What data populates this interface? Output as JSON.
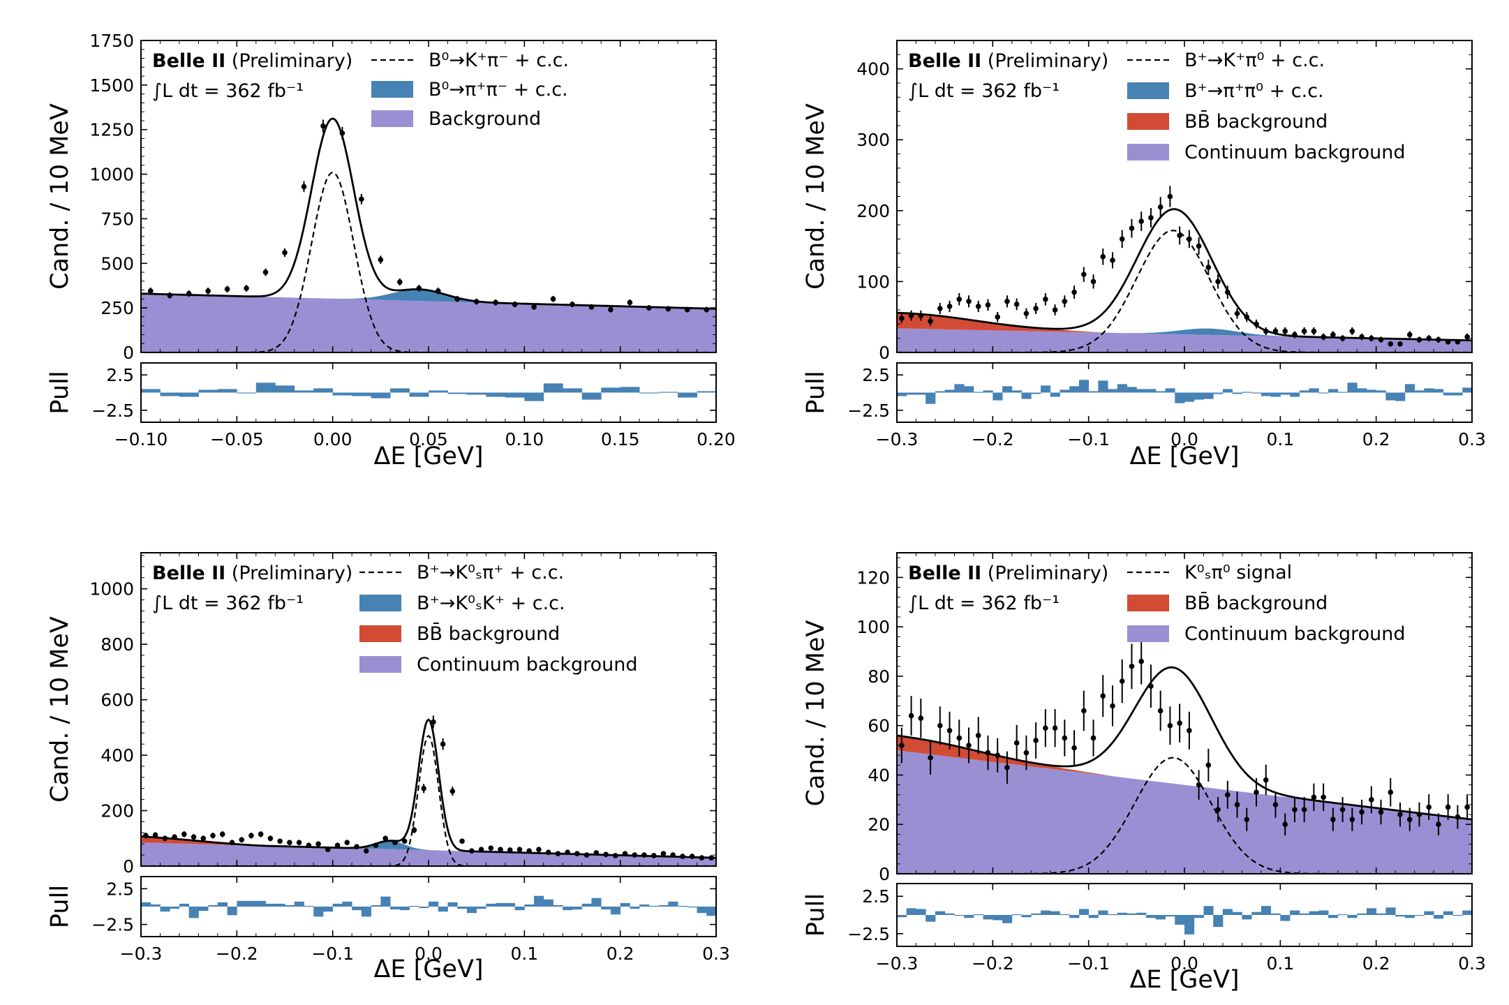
{
  "figure": {
    "experiment_bold": "Belle II",
    "experiment_note": "(Preliminary)",
    "luminosity": "∫L dt = 362 fb⁻¹",
    "pull_label": "Pull",
    "pull_ticks": [
      "2.5",
      "−2.5"
    ],
    "colors": {
      "signal": "#4682b4",
      "bbbar": "#d24b35",
      "continuum": "#9b8fd4",
      "fit": "#000000"
    }
  },
  "chart_data": [
    {
      "id": "kpi",
      "type": "area",
      "title": "",
      "xlabel": "ΔE [GeV]",
      "ylabel": "Cand. / 10 MeV",
      "xlim": [
        -0.1,
        0.2
      ],
      "ylim": [
        0,
        1750
      ],
      "xticks": [
        -0.1,
        -0.05,
        0.0,
        0.05,
        0.1,
        0.15,
        0.2
      ],
      "xtick_labels": [
        "−0.10",
        "−0.05",
        "0.00",
        "0.05",
        "0.10",
        "0.15",
        "0.20"
      ],
      "yticks": [
        0,
        250,
        500,
        750,
        1000,
        1250,
        1500,
        1750
      ],
      "ytick_labels": [
        "0",
        "250",
        "500",
        "750",
        "1000",
        "1250",
        "1500",
        "1750"
      ],
      "legend": [
        {
          "kind": "dashed",
          "label": "B⁰→K⁺π⁻ + c.c."
        },
        {
          "kind": "signal",
          "label": "B⁰→π⁺π⁻ + c.c."
        },
        {
          "kind": "continuum",
          "label": "Background"
        }
      ],
      "model": {
        "bkg0": 330,
        "bkg1": 245,
        "bb0": 0,
        "bb_end": -0.1,
        "sig_mu": 0.0,
        "sig_amp": 1010,
        "sig_sigma": 0.011,
        "feed_mu": 0.045,
        "feed_amp": 65,
        "feed_sigma": 0.014
      },
      "data_points": {
        "x": [
          -0.095,
          -0.085,
          -0.075,
          -0.065,
          -0.055,
          -0.045,
          -0.035,
          -0.025,
          -0.015,
          -0.005,
          0.005,
          0.015,
          0.025,
          0.035,
          0.045,
          0.055,
          0.065,
          0.075,
          0.085,
          0.095,
          0.105,
          0.115,
          0.125,
          0.135,
          0.145,
          0.155,
          0.165,
          0.175,
          0.185,
          0.195
        ],
        "y": [
          345,
          320,
          330,
          345,
          355,
          360,
          450,
          560,
          930,
          1270,
          1230,
          860,
          520,
          395,
          360,
          345,
          300,
          285,
          280,
          270,
          255,
          300,
          270,
          255,
          240,
          280,
          250,
          245,
          240,
          240
        ]
      },
      "pulls": [
        0.5,
        -0.5,
        -0.6,
        0.4,
        0.5,
        -0.1,
        1.4,
        1.0,
        0.3,
        0.6,
        -0.4,
        -0.5,
        -0.8,
        0.6,
        -0.6,
        0.3,
        -0.2,
        -0.3,
        -0.6,
        -0.7,
        -1.2,
        1.3,
        0.6,
        -1.0,
        0.7,
        0.8,
        -0.1,
        0.1,
        -0.7,
        0.2
      ]
    },
    {
      "id": "kpi0",
      "type": "area",
      "title": "",
      "xlabel": "ΔE [GeV]",
      "ylabel": "Cand. / 10 MeV",
      "xlim": [
        -0.3,
        0.3
      ],
      "ylim": [
        0,
        440
      ],
      "xticks": [
        -0.3,
        -0.2,
        -0.1,
        0.0,
        0.1,
        0.2,
        0.3
      ],
      "xtick_labels": [
        "−0.3",
        "−0.2",
        "−0.1",
        "0.0",
        "0.1",
        "0.2",
        "0.3"
      ],
      "yticks": [
        0,
        100,
        200,
        300,
        400
      ],
      "ytick_labels": [
        "0",
        "100",
        "200",
        "300",
        "400"
      ],
      "legend": [
        {
          "kind": "dashed",
          "label": "B⁺→K⁺π⁰ + c.c."
        },
        {
          "kind": "signal",
          "label": "B⁺→π⁺π⁰ + c.c."
        },
        {
          "kind": "bbbar",
          "label": "BB̄ background"
        },
        {
          "kind": "continuum",
          "label": "Continuum background"
        }
      ],
      "model": {
        "bkg0": 34,
        "bkg1": 17,
        "bb0": 22,
        "bb_end": -0.08,
        "sig_mu": -0.012,
        "sig_amp": 172,
        "sig_sigma": 0.038,
        "feed_mu": 0.025,
        "feed_amp": 9,
        "feed_sigma": 0.03
      },
      "data_points": {
        "x": [
          -0.295,
          -0.285,
          -0.275,
          -0.265,
          -0.255,
          -0.245,
          -0.235,
          -0.225,
          -0.215,
          -0.205,
          -0.195,
          -0.185,
          -0.175,
          -0.165,
          -0.155,
          -0.145,
          -0.135,
          -0.125,
          -0.115,
          -0.105,
          -0.095,
          -0.085,
          -0.075,
          -0.065,
          -0.055,
          -0.045,
          -0.035,
          -0.025,
          -0.015,
          -0.005,
          0.005,
          0.015,
          0.025,
          0.035,
          0.045,
          0.055,
          0.065,
          0.075,
          0.085,
          0.095,
          0.105,
          0.115,
          0.125,
          0.135,
          0.145,
          0.155,
          0.165,
          0.175,
          0.185,
          0.195,
          0.205,
          0.215,
          0.225,
          0.235,
          0.245,
          0.255,
          0.265,
          0.275,
          0.285,
          0.295
        ],
        "y": [
          48,
          52,
          52,
          44,
          62,
          65,
          75,
          72,
          65,
          67,
          50,
          72,
          68,
          55,
          62,
          75,
          60,
          72,
          85,
          110,
          100,
          135,
          130,
          160,
          175,
          185,
          190,
          205,
          220,
          165,
          160,
          150,
          120,
          100,
          85,
          55,
          50,
          40,
          30,
          30,
          30,
          25,
          30,
          30,
          22,
          25,
          20,
          30,
          22,
          20,
          18,
          12,
          12,
          25,
          18,
          20,
          18,
          15,
          15,
          22
        ]
      },
      "pulls": [
        -0.5,
        -0.3,
        -0.3,
        -1.6,
        0.2,
        0.4,
        1.2,
        0.9,
        0.1,
        0.3,
        -1.1,
        0.9,
        0.3,
        -0.9,
        -0.2,
        1.0,
        -0.6,
        0.4,
        0.9,
        1.8,
        0.2,
        1.7,
        0.5,
        1.2,
        0.8,
        0.5,
        0.5,
        0.2,
        0.6,
        -1.5,
        -1.3,
        -1.0,
        -0.9,
        -0.2,
        0.5,
        -0.2,
        0.1,
        -0.1,
        -0.5,
        -0.6,
        -0.3,
        -0.6,
        0.3,
        0.6,
        -0.1,
        0.5,
        0.1,
        1.4,
        0.6,
        0.4,
        0.3,
        -1.1,
        -1.2,
        1.2,
        0.3,
        0.6,
        0.5,
        -0.4,
        -0.4,
        0.7
      ]
    },
    {
      "id": "kspi",
      "type": "area",
      "title": "",
      "xlabel": "ΔE [GeV]",
      "ylabel": "Cand. / 10 MeV",
      "xlim": [
        -0.3,
        0.3
      ],
      "ylim": [
        0,
        1130
      ],
      "xticks": [
        -0.3,
        -0.2,
        -0.1,
        0.0,
        0.1,
        0.2,
        0.3
      ],
      "xtick_labels": [
        "−0.3",
        "−0.2",
        "−0.1",
        "0.0",
        "0.1",
        "0.2",
        "0.3"
      ],
      "yticks": [
        0,
        200,
        400,
        600,
        800,
        1000
      ],
      "ytick_labels": [
        "0",
        "200",
        "400",
        "600",
        "800",
        "1000"
      ],
      "legend": [
        {
          "kind": "dashed",
          "label": "B⁺→K⁰ₛπ⁺ + c.c."
        },
        {
          "kind": "signal",
          "label": "B⁺→K⁰ₛK⁺ + c.c."
        },
        {
          "kind": "bbbar",
          "label": "BB̄ background"
        },
        {
          "kind": "continuum",
          "label": "Continuum background"
        }
      ],
      "model": {
        "bkg0": 85,
        "bkg1": 30,
        "bb0": 22,
        "bb_end": -0.17,
        "sig_mu": 0.0,
        "sig_amp": 470,
        "sig_sigma": 0.0105,
        "feed_mu": -0.04,
        "feed_amp": 30,
        "feed_sigma": 0.015
      },
      "data_points": {
        "x": [
          -0.295,
          -0.285,
          -0.275,
          -0.265,
          -0.255,
          -0.245,
          -0.235,
          -0.225,
          -0.215,
          -0.205,
          -0.195,
          -0.185,
          -0.175,
          -0.165,
          -0.155,
          -0.145,
          -0.135,
          -0.125,
          -0.115,
          -0.105,
          -0.095,
          -0.085,
          -0.075,
          -0.065,
          -0.055,
          -0.045,
          -0.035,
          -0.025,
          -0.015,
          -0.005,
          0.005,
          0.015,
          0.025,
          0.035,
          0.045,
          0.055,
          0.065,
          0.075,
          0.085,
          0.095,
          0.105,
          0.115,
          0.125,
          0.135,
          0.145,
          0.155,
          0.165,
          0.175,
          0.185,
          0.195,
          0.205,
          0.215,
          0.225,
          0.235,
          0.245,
          0.255,
          0.265,
          0.275,
          0.285,
          0.295
        ],
        "y": [
          110,
          112,
          100,
          105,
          115,
          105,
          100,
          110,
          115,
          85,
          95,
          110,
          115,
          100,
          90,
          85,
          85,
          75,
          80,
          60,
          75,
          85,
          70,
          55,
          75,
          100,
          85,
          90,
          130,
          280,
          520,
          440,
          270,
          90,
          55,
          60,
          65,
          60,
          58,
          60,
          55,
          60,
          50,
          45,
          50,
          45,
          40,
          48,
          42,
          38,
          45,
          40,
          40,
          38,
          45,
          40,
          35,
          35,
          30,
          30
        ]
      },
      "pulls": [
        0.6,
        0.3,
        -0.7,
        -0.3,
        0.4,
        -1.6,
        -0.6,
        0.2,
        0.6,
        -1.2,
        0.8,
        0.8,
        0.8,
        0.4,
        0.4,
        0.2,
        0.7,
        0.1,
        -1.4,
        -0.7,
        0.4,
        0.7,
        -0.5,
        -1.4,
        0.2,
        1.4,
        -0.4,
        -0.5,
        0.1,
        -0.2,
        0.7,
        -0.7,
        0.6,
        -0.3,
        -0.9,
        -0.3,
        0.4,
        0.5,
        0.5,
        -0.5,
        0.3,
        1.5,
        1.0,
        0.2,
        -0.5,
        -0.4,
        0.4,
        1.2,
        -0.4,
        -1.1,
        0.5,
        -0.3,
        0.3,
        0.1,
        0.2,
        0.7,
        0.1,
        -0.1,
        -0.9,
        -1.3
      ]
    },
    {
      "id": "kspi0",
      "type": "area",
      "title": "",
      "xlabel": "ΔE [GeV]",
      "ylabel": "Cand. / 10 MeV",
      "xlim": [
        -0.3,
        0.3
      ],
      "ylim": [
        0,
        130
      ],
      "xticks": [
        -0.3,
        -0.2,
        -0.1,
        0.0,
        0.1,
        0.2,
        0.3
      ],
      "xtick_labels": [
        "−0.3",
        "−0.2",
        "−0.1",
        "0.0",
        "0.1",
        "0.2",
        "0.3"
      ],
      "yticks": [
        0,
        20,
        40,
        60,
        80,
        100,
        120
      ],
      "ytick_labels": [
        "0",
        "20",
        "40",
        "60",
        "80",
        "100",
        "120"
      ],
      "legend": [
        {
          "kind": "dashed",
          "label": "K⁰ₛπ⁰ signal"
        },
        {
          "kind": "bbbar",
          "label": "BB̄ background"
        },
        {
          "kind": "continuum",
          "label": "Continuum background"
        }
      ],
      "model": {
        "bkg0": 50,
        "bkg1": 22,
        "bb0": 6,
        "bb_end": -0.07,
        "sig_mu": -0.012,
        "sig_amp": 47,
        "sig_sigma": 0.04,
        "feed_mu": 0,
        "feed_amp": 0,
        "feed_sigma": 0.02
      },
      "data_points": {
        "x": [
          -0.295,
          -0.285,
          -0.275,
          -0.265,
          -0.255,
          -0.245,
          -0.235,
          -0.225,
          -0.215,
          -0.205,
          -0.195,
          -0.185,
          -0.175,
          -0.165,
          -0.155,
          -0.145,
          -0.135,
          -0.125,
          -0.115,
          -0.105,
          -0.095,
          -0.085,
          -0.075,
          -0.065,
          -0.055,
          -0.045,
          -0.035,
          -0.025,
          -0.015,
          -0.005,
          0.005,
          0.015,
          0.025,
          0.035,
          0.045,
          0.055,
          0.065,
          0.075,
          0.085,
          0.095,
          0.105,
          0.115,
          0.125,
          0.135,
          0.145,
          0.155,
          0.165,
          0.175,
          0.185,
          0.195,
          0.205,
          0.215,
          0.225,
          0.235,
          0.245,
          0.255,
          0.265,
          0.275,
          0.285,
          0.295
        ],
        "y": [
          52,
          64,
          63,
          47,
          60,
          58,
          55,
          52,
          56,
          49,
          48,
          43,
          53,
          49,
          54,
          59,
          59,
          55,
          51,
          66,
          55,
          72,
          68,
          78,
          84,
          86,
          76,
          66,
          60,
          61,
          58,
          36,
          44,
          26,
          32,
          28,
          22,
          33,
          38,
          28,
          20,
          26,
          26,
          31,
          31,
          22,
          26,
          22,
          25,
          30,
          25,
          33,
          24,
          22,
          24,
          27,
          20,
          27,
          23,
          27
        ]
      },
      "pulls": [
        -0.3,
        0.9,
        0.8,
        -0.9,
        0.5,
        0.2,
        -0.1,
        -0.4,
        0.1,
        -0.6,
        -0.7,
        -1.1,
        0.1,
        -0.3,
        0.2,
        0.6,
        0.5,
        0.1,
        -0.4,
        0.8,
        -0.4,
        0.6,
        0.1,
        0.3,
        0.2,
        0.3,
        -0.4,
        -0.6,
        -0.2,
        -1.3,
        -2.6,
        -0.4,
        1.2,
        -1.6,
        0.8,
        0.4,
        -0.6,
        0.4,
        1.2,
        0.2,
        -0.8,
        0.6,
        0.2,
        0.5,
        0.6,
        -0.4,
        0.1,
        -0.4,
        0.2,
        0.9,
        0.2,
        1.0,
        -0.2,
        -0.4,
        -0.1,
        0.5,
        -0.5,
        0.5,
        0.0,
        0.6
      ]
    }
  ]
}
